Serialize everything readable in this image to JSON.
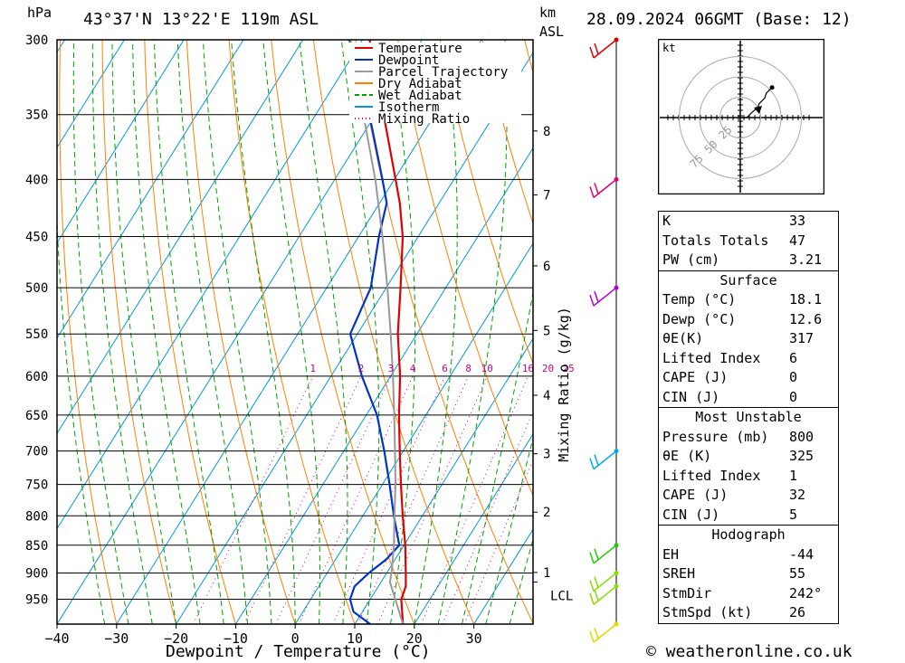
{
  "header": {
    "location": "43°37'N 13°22'E 119m ASL",
    "datetime": "28.09.2024 06GMT (Base: 12)",
    "pressure_unit": "hPa",
    "km_unit": "km",
    "asl_unit": "ASL"
  },
  "footer": {
    "credit": "© weatheronline.co.uk"
  },
  "chart_data": {
    "type": "line",
    "subtype": "skew-T log-P",
    "xlabel": "Dewpoint / Temperature (°C)",
    "ylabel": "hPa",
    "x_ticks": [
      -40,
      -30,
      -20,
      -10,
      0,
      10,
      20,
      30
    ],
    "xlim": [
      -40,
      40
    ],
    "y_ticks": [
      300,
      350,
      400,
      450,
      500,
      550,
      600,
      650,
      700,
      750,
      800,
      850,
      900,
      950
    ],
    "ylim": [
      1000,
      300
    ],
    "grid": true,
    "y_scale": "log",
    "mixing_ratio_label": "Mixing Ratio (g/kg)",
    "mixing_ratio_values": [
      "1",
      "2",
      "3",
      "4",
      "6",
      "8",
      "10",
      "16",
      "20",
      "25"
    ],
    "km_ticks": [
      {
        "label": "8",
        "p": 362
      },
      {
        "label": "7",
        "p": 413
      },
      {
        "label": "6",
        "p": 478
      },
      {
        "label": "5",
        "p": 546
      },
      {
        "label": "4",
        "p": 624
      },
      {
        "label": "3",
        "p": 704
      },
      {
        "label": "2",
        "p": 794
      },
      {
        "label": "1",
        "p": 899
      },
      {
        "label": "LCL",
        "p": 917
      }
    ],
    "legend": {
      "placement": "top-right",
      "items": [
        {
          "name": "Temperature",
          "color": "#e00000",
          "style": "solid"
        },
        {
          "name": "Dewpoint",
          "color": "#0033cc",
          "style": "solid"
        },
        {
          "name": "Parcel Trajectory",
          "color": "#999999",
          "style": "solid"
        },
        {
          "name": "Dry Adiabat",
          "color": "#ff8000",
          "style": "solid"
        },
        {
          "name": "Wet Adiabat",
          "color": "#00a000",
          "style": "dashed"
        },
        {
          "name": "Isotherm",
          "color": "#0099dd",
          "style": "solid"
        },
        {
          "name": "Mixing Ratio",
          "color": "#cc0080",
          "style": "dotted"
        }
      ]
    },
    "series": [
      {
        "name": "Temperature",
        "color": "#e00000",
        "points": [
          {
            "p": 1000,
            "t": 18.1
          },
          {
            "p": 950,
            "t": 15.2
          },
          {
            "p": 925,
            "t": 14.6
          },
          {
            "p": 900,
            "t": 13.2
          },
          {
            "p": 850,
            "t": 10.2
          },
          {
            "p": 800,
            "t": 6.7
          },
          {
            "p": 750,
            "t": 3.1
          },
          {
            "p": 700,
            "t": -0.6
          },
          {
            "p": 650,
            "t": -4.5
          },
          {
            "p": 600,
            "t": -8.4
          },
          {
            "p": 550,
            "t": -13.2
          },
          {
            "p": 500,
            "t": -17.6
          },
          {
            "p": 450,
            "t": -22.6
          },
          {
            "p": 420,
            "t": -26.6
          },
          {
            "p": 400,
            "t": -29.8
          },
          {
            "p": 350,
            "t": -38.6
          },
          {
            "p": 300,
            "t": -48.8
          }
        ]
      },
      {
        "name": "Dewpoint",
        "color": "#0033cc",
        "points": [
          {
            "p": 1000,
            "t": 12.6
          },
          {
            "p": 975,
            "t": 8.5
          },
          {
            "p": 950,
            "t": 6.6
          },
          {
            "p": 925,
            "t": 6.0
          },
          {
            "p": 900,
            "t": 7.0
          },
          {
            "p": 875,
            "t": 8.5
          },
          {
            "p": 850,
            "t": 9.2
          },
          {
            "p": 800,
            "t": 5.2
          },
          {
            "p": 750,
            "t": 1.2
          },
          {
            "p": 700,
            "t": -3.2
          },
          {
            "p": 650,
            "t": -8.2
          },
          {
            "p": 600,
            "t": -14.8
          },
          {
            "p": 550,
            "t": -21.2
          },
          {
            "p": 500,
            "t": -22.6
          },
          {
            "p": 450,
            "t": -26.6
          },
          {
            "p": 420,
            "t": -28.8
          },
          {
            "p": 400,
            "t": -32.0
          },
          {
            "p": 350,
            "t": -41.0
          },
          {
            "p": 300,
            "t": -52.2
          }
        ]
      },
      {
        "name": "Parcel Trajectory",
        "color": "#999999",
        "points": [
          {
            "p": 1000,
            "t": 18.1
          },
          {
            "p": 950,
            "t": 14.2
          },
          {
            "p": 917,
            "t": 11.5
          },
          {
            "p": 900,
            "t": 10.8
          },
          {
            "p": 850,
            "t": 8.3
          },
          {
            "p": 800,
            "t": 5.3
          },
          {
            "p": 750,
            "t": 2.2
          },
          {
            "p": 700,
            "t": -1.4
          },
          {
            "p": 650,
            "t": -5.3
          },
          {
            "p": 600,
            "t": -9.6
          },
          {
            "p": 550,
            "t": -14.4
          },
          {
            "p": 500,
            "t": -19.8
          },
          {
            "p": 450,
            "t": -26.0
          },
          {
            "p": 400,
            "t": -33.2
          },
          {
            "p": 350,
            "t": -42.0
          },
          {
            "p": 300,
            "t": -52.0
          }
        ]
      }
    ],
    "wind_barbs": [
      {
        "p": 300,
        "color": "#e00000"
      },
      {
        "p": 400,
        "color": "#e0007a"
      },
      {
        "p": 500,
        "color": "#b000d0"
      },
      {
        "p": 700,
        "color": "#00aaee"
      },
      {
        "p": 850,
        "color": "#22cc00"
      },
      {
        "p": 900,
        "color": "#88dd00"
      },
      {
        "p": 925,
        "color": "#88dd00"
      },
      {
        "p": 1000,
        "color": "#dddd00"
      }
    ],
    "hodograph": {
      "unit": "kt",
      "ring_labels": [
        "25",
        "50",
        "75"
      ],
      "points": [
        [
          0,
          0
        ],
        [
          8,
          0
        ],
        [
          14,
          6
        ],
        [
          22,
          13
        ],
        [
          23,
          17
        ],
        [
          30,
          24
        ],
        [
          32,
          30
        ],
        [
          39,
          37
        ]
      ]
    }
  },
  "indices": {
    "top": [
      {
        "label": "K",
        "value": "33"
      },
      {
        "label": "Totals Totals",
        "value": "47"
      },
      {
        "label": "PW (cm)",
        "value": "3.21"
      }
    ],
    "surface": {
      "title": "Surface",
      "rows": [
        {
          "label": "Temp (°C)",
          "value": "18.1"
        },
        {
          "label": "Dewp (°C)",
          "value": "12.6"
        },
        {
          "label": "θE(K)",
          "value": "317"
        },
        {
          "label": "Lifted Index",
          "value": "6"
        },
        {
          "label": "CAPE (J)",
          "value": "0"
        },
        {
          "label": "CIN (J)",
          "value": "0"
        }
      ]
    },
    "most_unstable": {
      "title": "Most Unstable",
      "rows": [
        {
          "label": "Pressure (mb)",
          "value": "800"
        },
        {
          "label": "θE (K)",
          "value": "325"
        },
        {
          "label": "Lifted Index",
          "value": "1"
        },
        {
          "label": "CAPE (J)",
          "value": "32"
        },
        {
          "label": "CIN (J)",
          "value": "5"
        }
      ]
    },
    "hodograph_box": {
      "title": "Hodograph",
      "rows": [
        {
          "label": "EH",
          "value": "-44"
        },
        {
          "label": "SREH",
          "value": "55"
        },
        {
          "label": "StmDir",
          "value": "242°"
        },
        {
          "label": "StmSpd (kt)",
          "value": "26"
        }
      ]
    }
  }
}
